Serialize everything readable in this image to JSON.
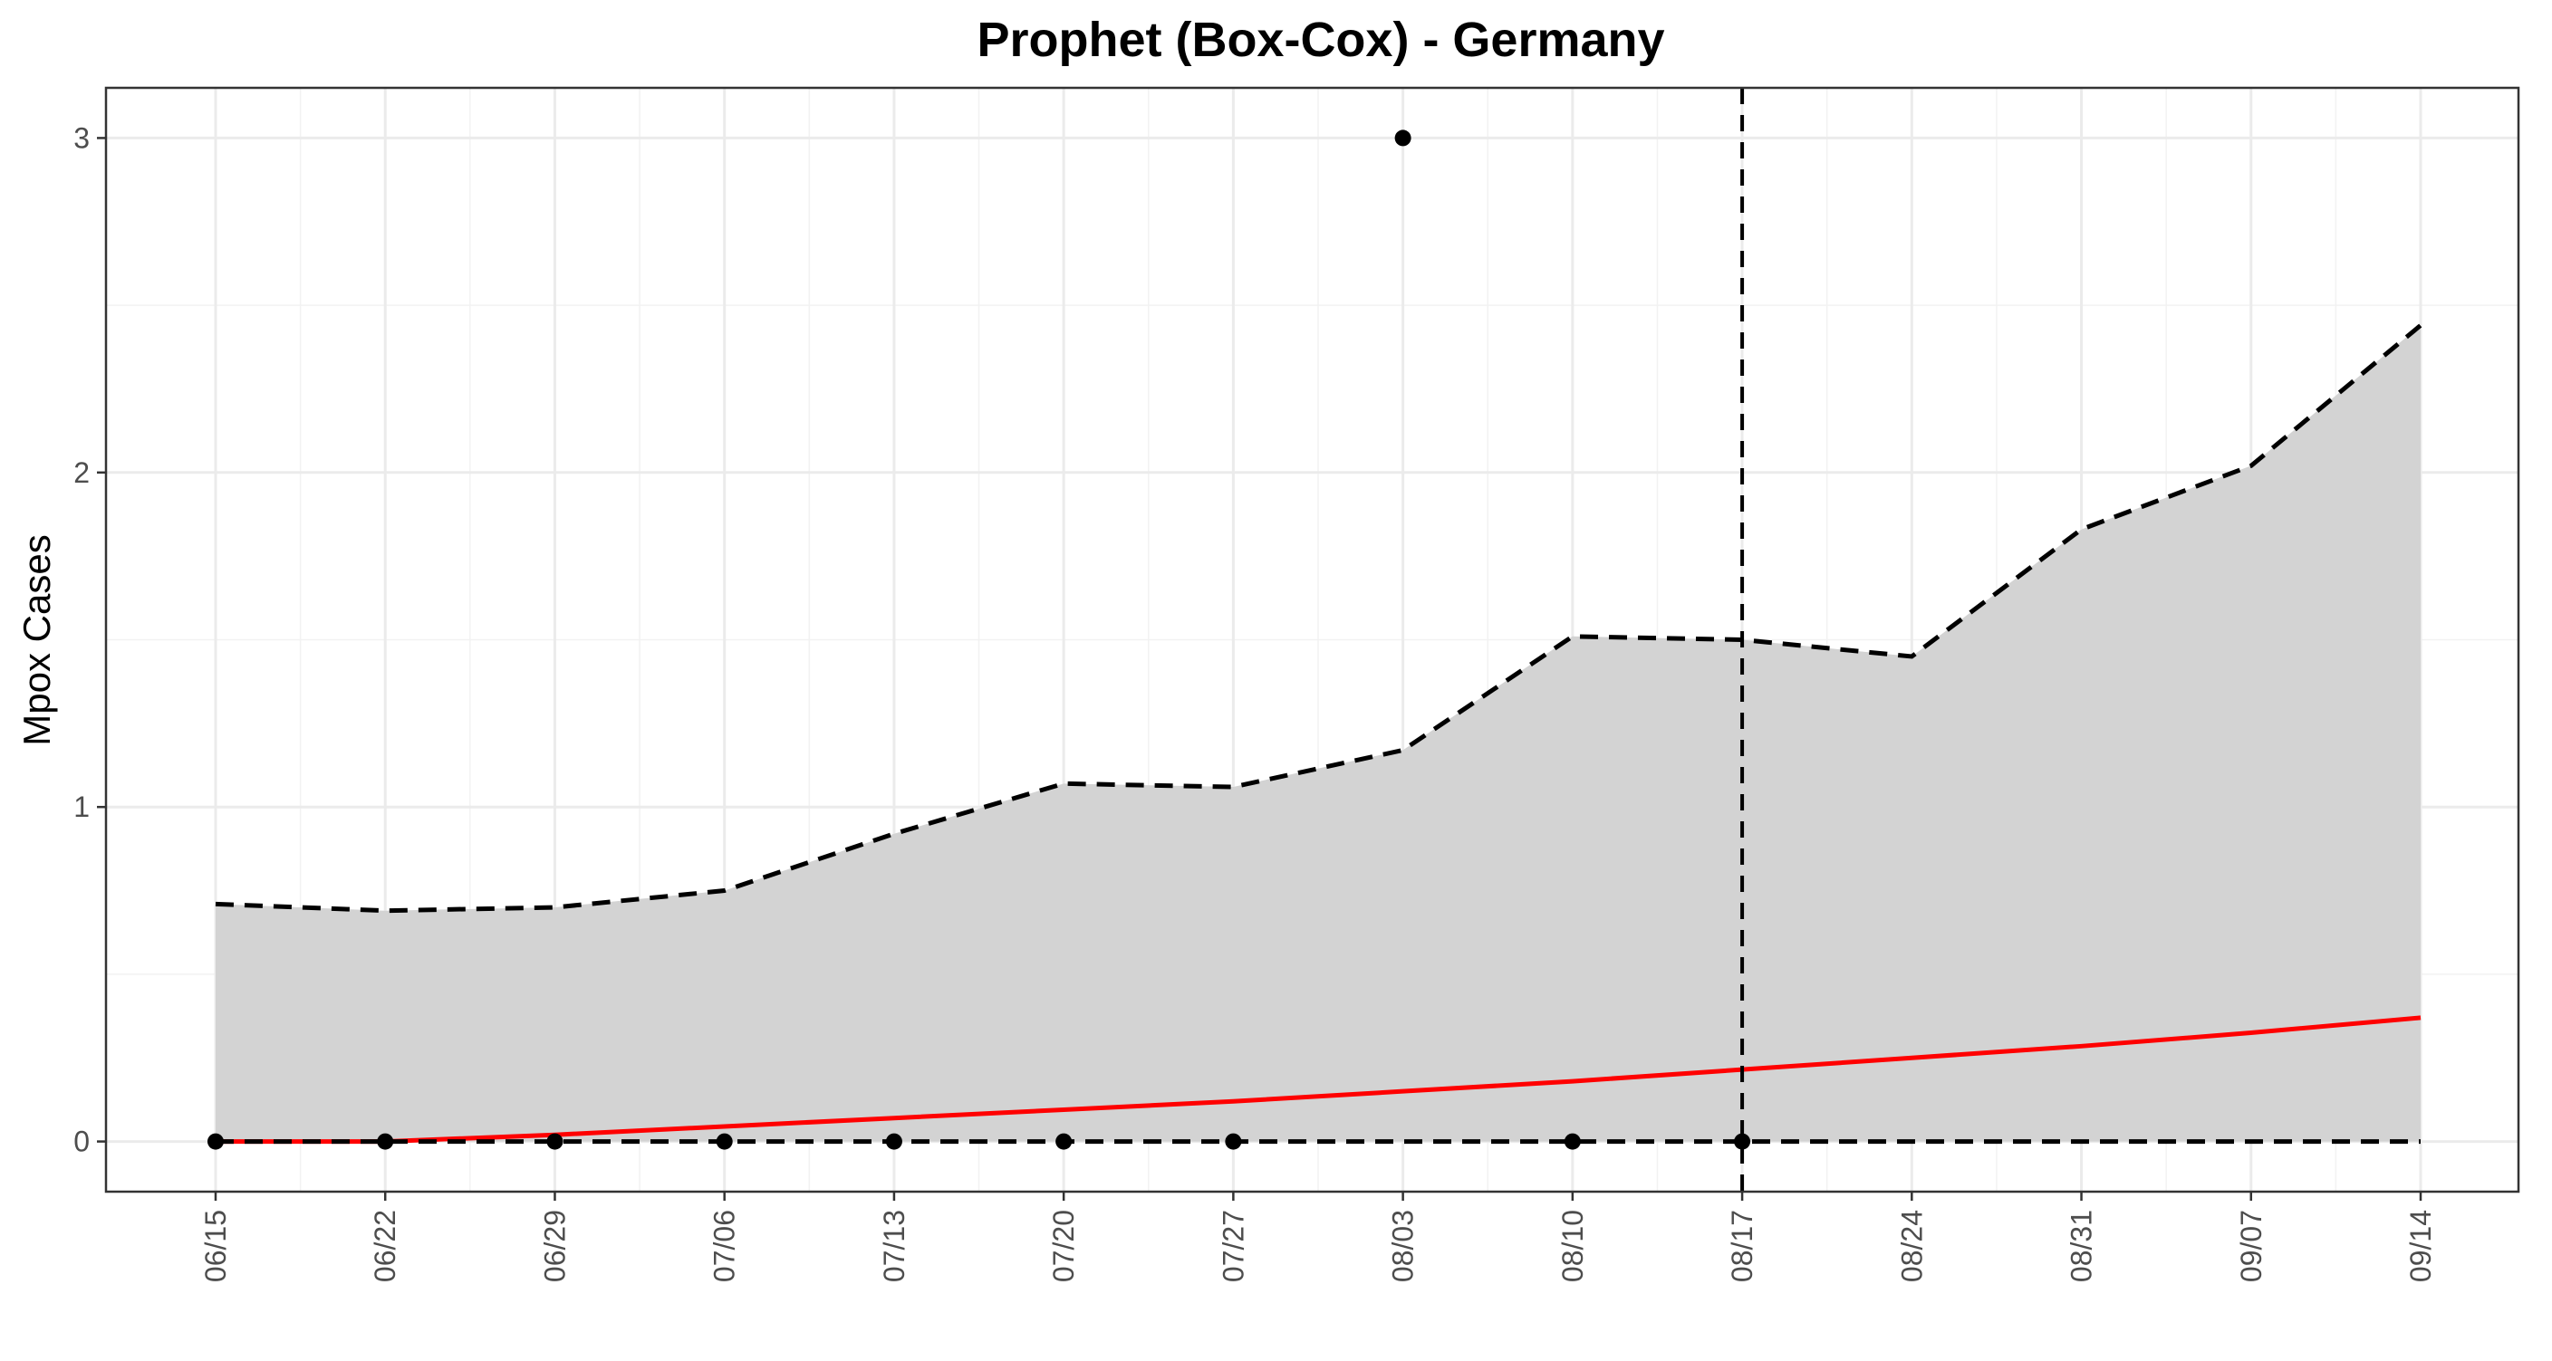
{
  "chart_data": {
    "type": "line",
    "title": "Prophet (Box-Cox) - Germany",
    "xlabel": "",
    "ylabel": "Mpox Cases",
    "x": [
      "06/15",
      "06/22",
      "06/29",
      "07/06",
      "07/13",
      "07/20",
      "07/27",
      "08/03",
      "08/10",
      "08/17",
      "08/24",
      "08/31",
      "09/07",
      "09/14"
    ],
    "ylim": [
      -0.15,
      3.15
    ],
    "yticks": [
      0,
      1,
      2,
      3
    ],
    "grid": true,
    "legend": "none",
    "series": [
      {
        "role": "upper_bound",
        "style": "dashed",
        "color": "#000000",
        "values": [
          0.71,
          0.69,
          0.7,
          0.75,
          0.92,
          1.07,
          1.06,
          1.17,
          1.51,
          1.5,
          1.45,
          1.83,
          2.02,
          2.44
        ]
      },
      {
        "role": "lower_bound",
        "style": "dashed",
        "color": "#000000",
        "values": [
          0,
          0,
          0,
          0,
          0,
          0,
          0,
          0,
          0,
          0,
          0,
          0,
          0,
          0
        ]
      },
      {
        "role": "forecast",
        "style": "solid",
        "color": "#ff0000",
        "values": [
          0.0,
          0.0,
          0.02,
          0.045,
          0.07,
          0.095,
          0.12,
          0.15,
          0.18,
          0.215,
          0.25,
          0.285,
          0.325,
          0.37
        ]
      },
      {
        "role": "observed",
        "style": "points",
        "color": "#000000",
        "values": [
          0,
          0,
          0,
          0,
          0,
          0,
          0,
          3,
          0,
          0,
          null,
          null,
          null,
          null
        ]
      }
    ],
    "interval_fill": "#d3d3d3",
    "vertical_line_at": "08/17"
  }
}
